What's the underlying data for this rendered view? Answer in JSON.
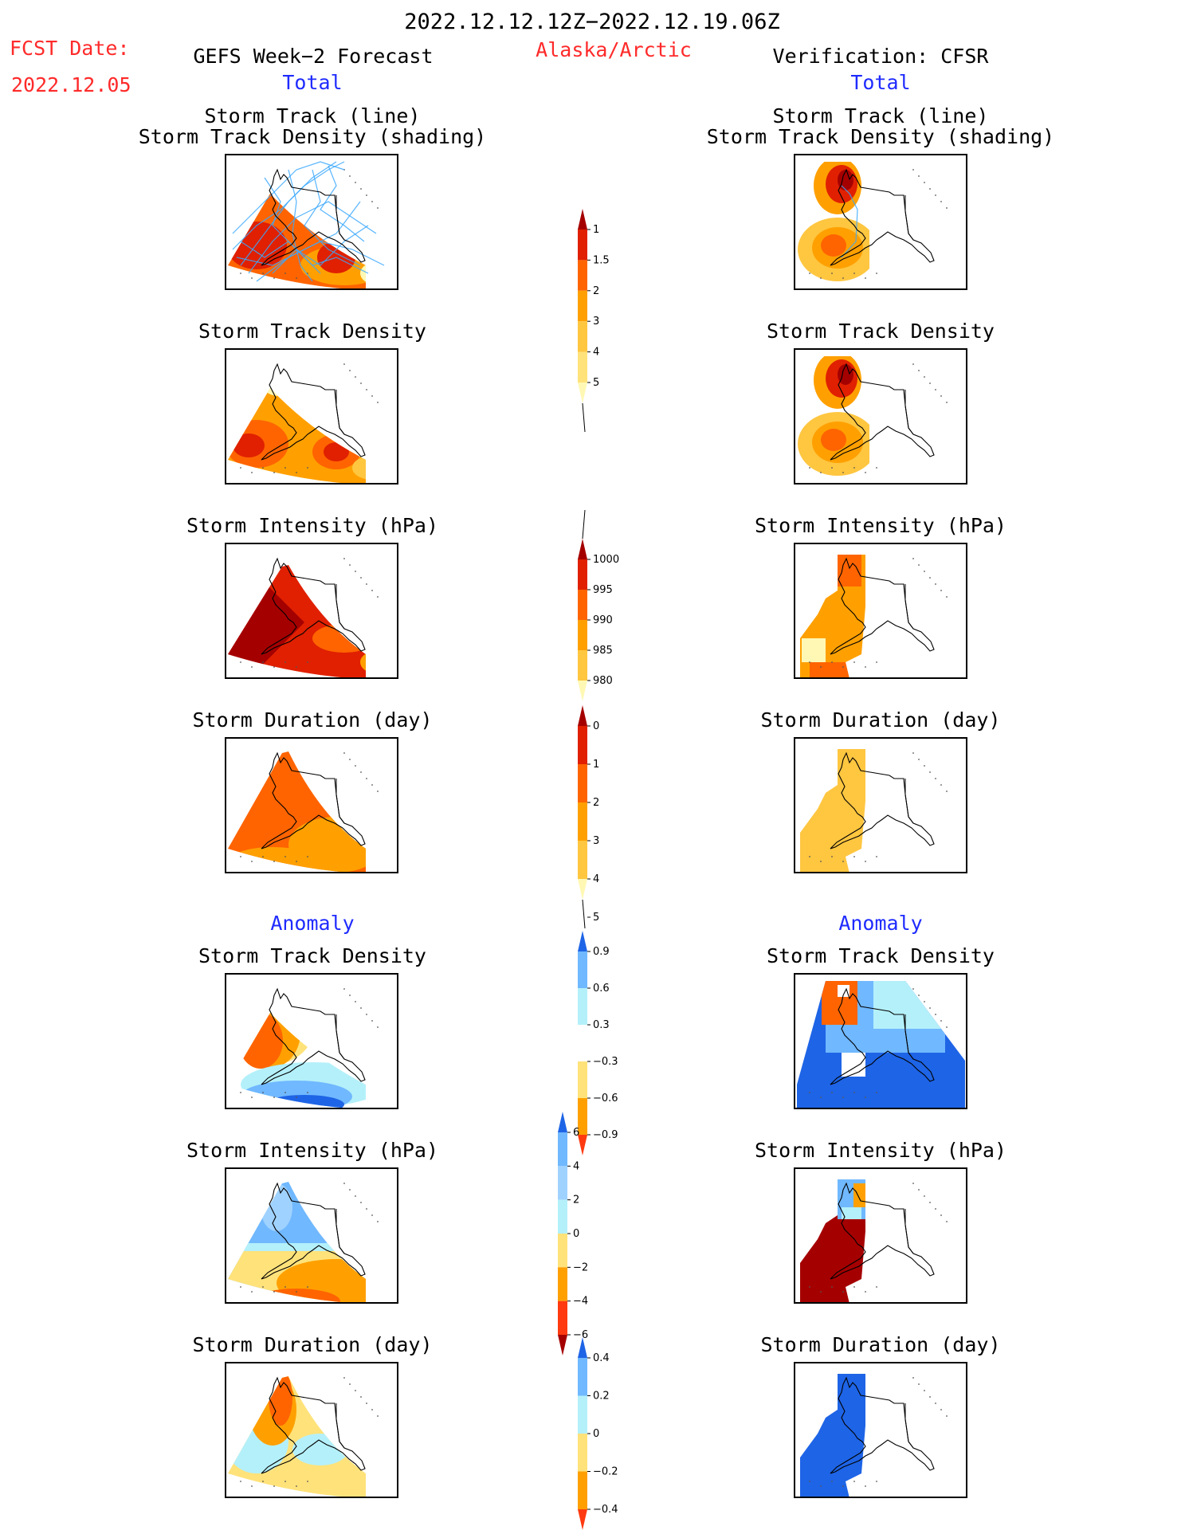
{
  "header": {
    "period": "2022.12.12.12Z−2022.12.19.06Z",
    "region": "Alaska/Arctic",
    "fcst_label": "FCST Date:",
    "fcst_date": "2022.12.05",
    "left_title": "GEFS Week−2 Forecast",
    "right_title": "Verification: CFSR",
    "total_label": "Total",
    "anomaly_label": "Anomaly"
  },
  "panel_titles": {
    "track_line": "Storm Track (line)",
    "track_shading": "Storm Track Density (shading)",
    "density": "Storm Track Density",
    "intensity": "Storm Intensity (hPa)",
    "duration": "Storm Duration (day)"
  },
  "colorbars": {
    "density_total": {
      "levels": [
        "1",
        "1.5",
        "2",
        "3",
        "4",
        "5"
      ],
      "colors": [
        "#fff8b4",
        "#ffe27a",
        "#ffc640",
        "#ffa000",
        "#ff6400",
        "#e02000",
        "#a50000"
      ]
    },
    "intensity_total": {
      "levels": [
        "1000",
        "995",
        "990",
        "985",
        "980"
      ],
      "colors": [
        "#fff8b4",
        "#ffc640",
        "#ffa000",
        "#ff6400",
        "#e02000",
        "#a50000"
      ]
    },
    "duration_total": {
      "levels": [
        "0",
        "1",
        "2",
        "3",
        "4",
        "5"
      ],
      "colors": [
        "#fff8b4",
        "#ffc640",
        "#ffa000",
        "#ff6400",
        "#e02000",
        "#a50000"
      ]
    },
    "density_anom": {
      "levels": [
        "0.9",
        "0.6",
        "0.3",
        "−0.3",
        "−0.6",
        "−0.9"
      ],
      "colors": [
        "#ff3a10",
        "#ffa000",
        "#ffe27a",
        "#ffffff",
        "#b4f0fa",
        "#70b8ff",
        "#1e64e6"
      ]
    },
    "intensity_anom": {
      "levels": [
        "6",
        "4",
        "2",
        "0",
        "−2",
        "−4",
        "−6"
      ],
      "colors": [
        "#a50000",
        "#ff3a10",
        "#ffa000",
        "#ffe27a",
        "#b4f0fa",
        "#a0d2ff",
        "#70b8ff",
        "#1e64e6"
      ]
    },
    "duration_anom": {
      "levels": [
        "0.4",
        "0.2",
        "0",
        "−0.2",
        "−0.4"
      ],
      "colors": [
        "#ff3a10",
        "#ffa000",
        "#ffe27a",
        "#b4f0fa",
        "#70b8ff",
        "#1e64e6"
      ]
    }
  },
  "map_colors": {
    "light_yellow": "#fff8b4",
    "yellow": "#ffe27a",
    "orange_light": "#ffc640",
    "orange": "#ffa000",
    "orange_dark": "#ff6400",
    "red": "#e02000",
    "dark_red": "#a50000",
    "light_cyan": "#b4f0fa",
    "light_blue": "#a0d2ff",
    "blue": "#70b8ff",
    "dark_blue": "#1e64e6",
    "track_line": "#3aa8ff"
  }
}
